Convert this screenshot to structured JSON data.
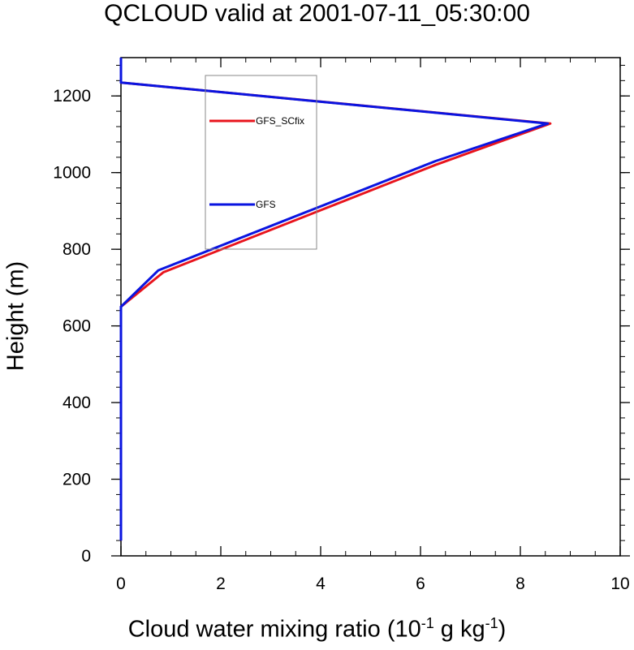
{
  "chart_data": {
    "type": "line",
    "title": "QCLOUD valid at 2001-07-11_05:30:00",
    "xlabel": {
      "base": "Cloud water mixing ratio (10",
      "exp1": "-1",
      "mid": " g kg",
      "exp2": "-1",
      "end": ")"
    },
    "ylabel": "Height (m)",
    "xlim": [
      0,
      10
    ],
    "ylim": [
      0,
      1300
    ],
    "xticks": [
      0,
      2,
      4,
      6,
      8,
      10
    ],
    "yticks": [
      0,
      200,
      400,
      600,
      800,
      1000,
      1200
    ],
    "legend_position": "upper-center",
    "series": [
      {
        "name": "GFS_SCfix",
        "color": "#e8141d",
        "points": [
          [
            0,
            40
          ],
          [
            0,
            650
          ],
          [
            0.85,
            740
          ],
          [
            6.3,
            1020
          ],
          [
            8.6,
            1128
          ],
          [
            0,
            1235
          ],
          [
            0,
            1300
          ]
        ]
      },
      {
        "name": "GFS",
        "color": "#0a14e0",
        "points": [
          [
            0,
            40
          ],
          [
            0,
            650
          ],
          [
            0.75,
            745
          ],
          [
            6.3,
            1030
          ],
          [
            8.55,
            1128
          ],
          [
            0,
            1235
          ],
          [
            0,
            1300
          ]
        ]
      }
    ]
  }
}
